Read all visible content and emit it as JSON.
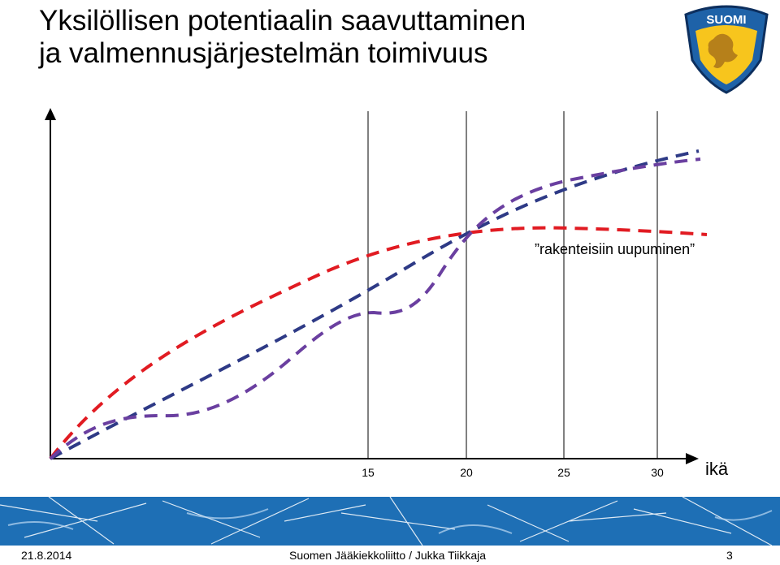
{
  "slide": {
    "title_line1": "Yksilöllisen potentiaalin saavuttaminen",
    "title_line2": "ja valmennusjärjestelmän toimivuus",
    "logo_text": "SUOMI"
  },
  "diagram": {
    "x_axis_label": "ikä",
    "x_ticks": [
      "15",
      "20",
      "25",
      "30"
    ],
    "annotation": "”rakenteisiin uupuminen”",
    "colors": {
      "red": "#e11b22",
      "blue": "#2e3a86",
      "purple": "#6a3fa0",
      "axis": "#000000"
    }
  },
  "footer": {
    "date": "21.8.2014",
    "organization": "Suomen Jääkiekkoliitto / Jukka Tiikkaja",
    "page": "3"
  }
}
